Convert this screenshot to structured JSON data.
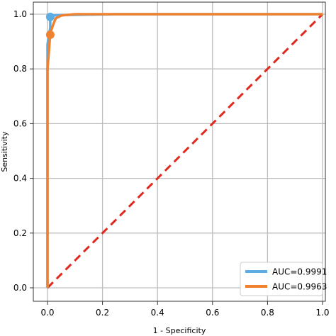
{
  "chart_data": {
    "type": "line",
    "xlabel": "1 - Specificity",
    "ylabel": "Sensitivity",
    "xlim": [
      0,
      1
    ],
    "ylim": [
      0,
      1
    ],
    "xticks": [
      "0.0",
      "0.2",
      "0.4",
      "0.6",
      "0.8",
      "1.0"
    ],
    "yticks": [
      "0.0",
      "0.2",
      "0.4",
      "0.6",
      "0.8",
      "1.0"
    ],
    "grid": true,
    "legend_position": "bottom-right",
    "series": [
      {
        "name": "AUC=0.9991",
        "color": "#5DADE2",
        "x": [
          0,
          0,
          0.01,
          0.01,
          0.02,
          0.05,
          0.25,
          1.0
        ],
        "y": [
          0,
          0.89,
          0.95,
          0.99,
          0.995,
          0.997,
          1.0,
          1.0
        ],
        "marker": {
          "x": 0.01,
          "y": 0.99
        }
      },
      {
        "name": "AUC=0.9963",
        "color": "#F0812E",
        "x": [
          0,
          0,
          0.005,
          0.01,
          0.02,
          0.03,
          0.05,
          0.1,
          1.0
        ],
        "y": [
          0,
          0.8,
          0.86,
          0.93,
          0.96,
          0.985,
          0.995,
          1.0,
          1.0
        ],
        "marker": {
          "x": 0.01,
          "y": 0.925
        }
      }
    ],
    "diagonal": {
      "color": "#E0281E",
      "x": [
        0,
        1
      ],
      "y": [
        0,
        1
      ]
    }
  }
}
